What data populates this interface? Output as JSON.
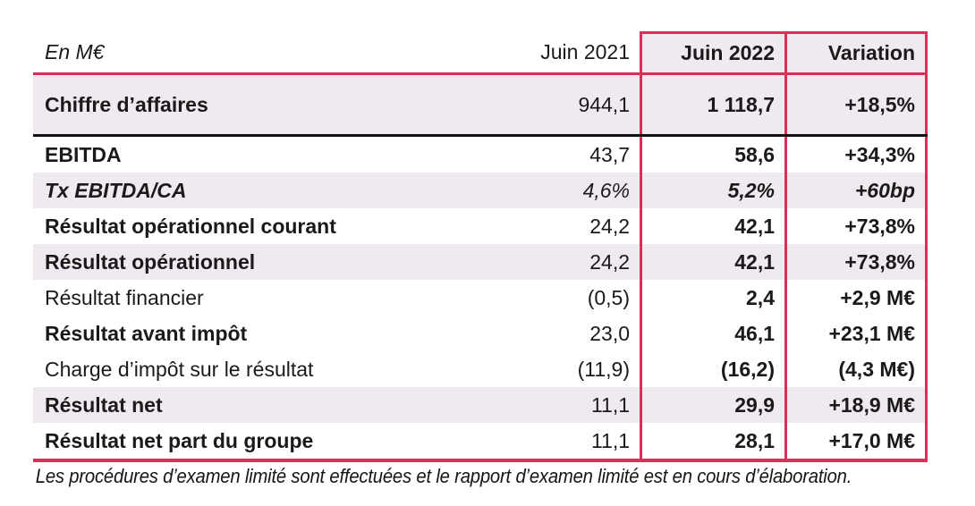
{
  "colors": {
    "accent": "#d9305a",
    "row_shade": "#f0e9f0",
    "black_divider": "#101010"
  },
  "table": {
    "unit_label": "En M€",
    "columns": {
      "period_prev": "Juin 2021",
      "period_current": "Juin 2022",
      "variation": "Variation"
    },
    "rows": [
      {
        "label": "Chiffre d’affaires",
        "juin2021": "944,1",
        "juin2022": "1 118,7",
        "variation": "+18,5%"
      },
      {
        "label": "EBITDA",
        "juin2021": "43,7",
        "juin2022": "58,6",
        "variation": "+34,3%"
      },
      {
        "label": "Tx EBITDA/CA",
        "juin2021": "4,6%",
        "juin2022": "5,2%",
        "variation": "+60bp"
      },
      {
        "label": "Résultat opérationnel courant",
        "juin2021": "24,2",
        "juin2022": "42,1",
        "variation": "+73,8%"
      },
      {
        "label": "Résultat opérationnel",
        "juin2021": "24,2",
        "juin2022": "42,1",
        "variation": "+73,8%"
      },
      {
        "label": "Résultat financier",
        "juin2021": "(0,5)",
        "juin2022": "2,4",
        "variation": "+2,9 M€"
      },
      {
        "label": "Résultat avant impôt",
        "juin2021": "23,0",
        "juin2022": "46,1",
        "variation": "+23,1 M€"
      },
      {
        "label": "Charge d’impôt sur le résultat",
        "juin2021": "(11,9)",
        "juin2022": "(16,2)",
        "variation": "(4,3 M€)"
      },
      {
        "label": "Résultat net",
        "juin2021": "11,1",
        "juin2022": "29,9",
        "variation": "+18,9 M€"
      },
      {
        "label": "Résultat net part du groupe",
        "juin2021": "11,1",
        "juin2022": "28,1",
        "variation": "+17,0 M€"
      }
    ],
    "footnote": "Les procédures d’examen limité sont effectuées et le rapport d’examen limité est en cours d’élaboration."
  }
}
